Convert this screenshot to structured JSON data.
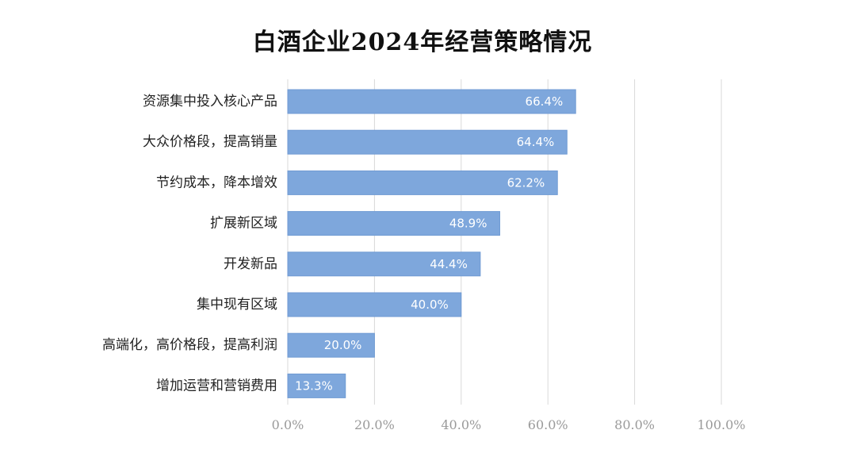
{
  "chart_data": {
    "type": "bar",
    "orientation": "horizontal",
    "title": "白酒企业2024年经营策略情况",
    "categories": [
      "资源集中投入核心产品",
      "大众价格段，提高销量",
      "节约成本，降本增效",
      "扩展新区域",
      "开发新品",
      "集中现有区域",
      "高端化，高价格段，提高利润",
      "增加运营和营销费用"
    ],
    "values": [
      66.4,
      64.4,
      62.2,
      48.9,
      44.4,
      40.0,
      20.0,
      13.3
    ],
    "value_labels": [
      "66.4%",
      "64.4%",
      "62.2%",
      "48.9%",
      "44.4%",
      "40.0%",
      "20.0%",
      "13.3%"
    ],
    "xlim": [
      0,
      100
    ],
    "x_ticks": [
      0,
      20,
      40,
      60,
      80,
      100
    ],
    "x_tick_labels": [
      "0.0%",
      "20.0%",
      "40.0%",
      "60.0%",
      "80.0%",
      "100.0%"
    ],
    "xlabel": "",
    "ylabel": "",
    "grid": "vertical",
    "legend": "none",
    "colors": {
      "bar": "#7ea7dc",
      "bar_stroke": "#6f9ad3",
      "grid": "#d9d9d9",
      "label_text": "#ffffff"
    }
  }
}
